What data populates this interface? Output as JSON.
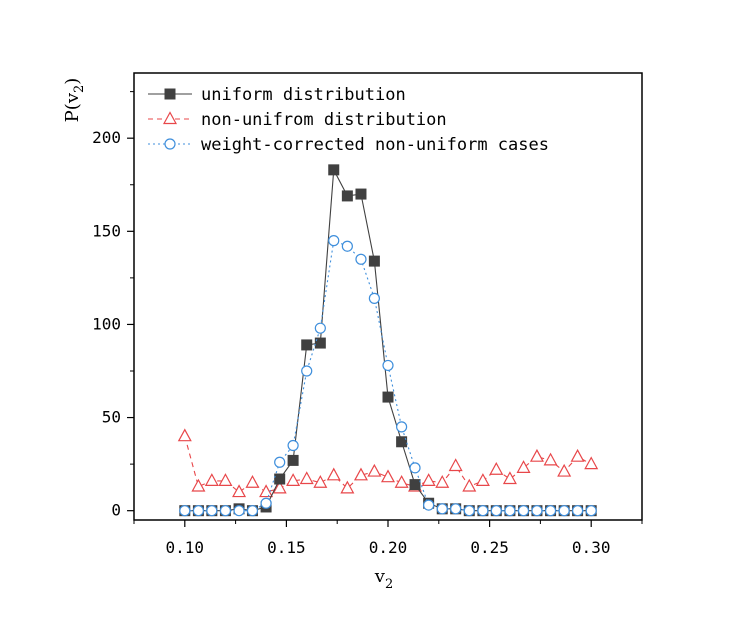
{
  "chart_data": {
    "type": "line",
    "title": "",
    "xlabel": "v",
    "xlabel_sub": "2",
    "ylabel": "P(v",
    "ylabel_sub": "2",
    "ylabel_close": ")",
    "xlim": [
      0.075,
      0.325
    ],
    "ylim": [
      -5,
      235
    ],
    "xticks": [
      0.1,
      0.15,
      0.2,
      0.25,
      0.3
    ],
    "xtick_labels": [
      "0.10",
      "0.15",
      "0.20",
      "0.25",
      "0.30"
    ],
    "yticks": [
      0,
      50,
      100,
      150,
      200
    ],
    "ytick_labels": [
      "0",
      "50",
      "100",
      "150",
      "200"
    ],
    "grid": false,
    "legend_position": "top-left",
    "x": [
      0.1,
      0.1067,
      0.1133,
      0.12,
      0.1267,
      0.1333,
      0.14,
      0.1467,
      0.1533,
      0.16,
      0.1667,
      0.1733,
      0.18,
      0.1867,
      0.1933,
      0.2,
      0.2067,
      0.2133,
      0.22,
      0.2267,
      0.2333,
      0.24,
      0.2467,
      0.2533,
      0.26,
      0.2667,
      0.2733,
      0.28,
      0.2867,
      0.2933,
      0.3
    ],
    "series": [
      {
        "name": "uniform distribution",
        "color": "#404040",
        "marker": "square",
        "line": "solid",
        "values": [
          0,
          0,
          0,
          0,
          1,
          0,
          2,
          17,
          27,
          89,
          90,
          183,
          169,
          170,
          134,
          61,
          37,
          14,
          4,
          1,
          1,
          0,
          0,
          0,
          0,
          0,
          0,
          0,
          0,
          0,
          0
        ]
      },
      {
        "name": "non-unifrom distribution",
        "color": "#e8474a",
        "marker": "triangle",
        "line": "dashed",
        "values": [
          40,
          13,
          16,
          16,
          10,
          15,
          10,
          12,
          16,
          17,
          15,
          19,
          12,
          19,
          21,
          18,
          15,
          13,
          16,
          15,
          24,
          13,
          16,
          22,
          17,
          23,
          29,
          27,
          21,
          29,
          25
        ]
      },
      {
        "name": "weight-corrected non-uniform cases",
        "color": "#3f8fdc",
        "marker": "circle",
        "line": "dotted",
        "values": [
          0,
          0,
          0,
          0,
          0,
          0,
          4,
          26,
          35,
          75,
          98,
          145,
          142,
          135,
          114,
          78,
          45,
          23,
          3,
          1,
          1,
          0,
          0,
          0,
          0,
          0,
          0,
          0,
          0,
          0,
          0
        ]
      }
    ]
  }
}
